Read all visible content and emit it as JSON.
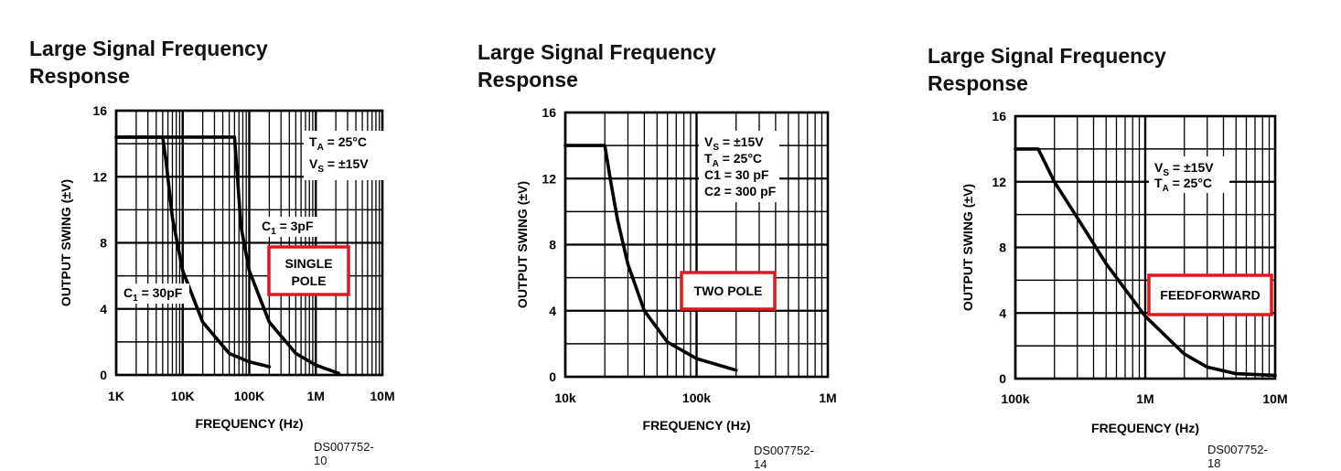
{
  "chart_data": [
    {
      "type": "line",
      "title": "Large Signal Frequency Response",
      "xlabel": "FREQUENCY (Hz)",
      "ylabel": "OUTPUT SWING (±V)",
      "xscale": "log",
      "xlim": [
        1000,
        10000000
      ],
      "ylim": [
        0,
        16
      ],
      "grid": true,
      "xtick_labels": [
        "1K",
        "10K",
        "100K",
        "1M",
        "10M"
      ],
      "ytick_labels": [
        "0",
        "4",
        "8",
        "12",
        "16"
      ],
      "conditions": [
        "T_A = 25°C",
        "V_S = ±15V"
      ],
      "boxed_label": "SINGLE POLE",
      "figure_code": "DS007752-10",
      "series": [
        {
          "name": "C1 = 30pF",
          "x": [
            1000,
            5000,
            5600,
            7000,
            10000,
            20000,
            50000,
            100000,
            200000
          ],
          "y": [
            14.4,
            14.4,
            13.0,
            9.5,
            6.3,
            3.2,
            1.3,
            0.8,
            0.5
          ]
        },
        {
          "name": "C1 = 3pF",
          "x": [
            1000,
            60000,
            65000,
            75000,
            100000,
            200000,
            500000,
            1000000,
            2200000
          ],
          "y": [
            14.4,
            14.4,
            12.5,
            9.0,
            6.3,
            3.2,
            1.3,
            0.6,
            0.1
          ]
        }
      ]
    },
    {
      "type": "line",
      "title": "Large Signal Frequency Response",
      "xlabel": "FREQUENCY (Hz)",
      "ylabel": "OUTPUT SWING (±V)",
      "xscale": "log",
      "xlim": [
        10000,
        1000000
      ],
      "ylim": [
        0,
        16
      ],
      "grid": true,
      "xtick_labels": [
        "10k",
        "100k",
        "1M"
      ],
      "ytick_labels": [
        "0",
        "4",
        "8",
        "12",
        "16"
      ],
      "conditions": [
        "V_S = ±15V",
        "T_A = 25°C",
        "C1 = 30 pF",
        "C2 = 300 pF"
      ],
      "boxed_label": "TWO POLE",
      "figure_code": "DS007752-14",
      "series": [
        {
          "x": [
            10000,
            20000,
            22000,
            25000,
            30000,
            40000,
            60000,
            100000,
            200000
          ],
          "y": [
            14.0,
            14.0,
            12.0,
            9.5,
            6.8,
            4.0,
            2.1,
            1.1,
            0.4
          ]
        }
      ]
    },
    {
      "type": "line",
      "title": "Large Signal Frequency Response",
      "xlabel": "FREQUENCY (Hz)",
      "ylabel": "OUTPUT SWING (±V)",
      "xscale": "log",
      "xlim": [
        100000,
        10000000
      ],
      "ylim": [
        0,
        16
      ],
      "grid": true,
      "xtick_labels": [
        "100k",
        "1M",
        "10M"
      ],
      "ytick_labels": [
        "0",
        "4",
        "8",
        "12",
        "16"
      ],
      "conditions": [
        "V_S = ±15V",
        "T_A = 25°C"
      ],
      "boxed_label": "FEEDFORWARD",
      "figure_code": "DS007752-18",
      "series": [
        {
          "x": [
            100000,
            150000,
            200000,
            300000,
            500000,
            1000000,
            2000000,
            3000000,
            5000000,
            10000000
          ],
          "y": [
            14.0,
            14.0,
            12.0,
            9.8,
            7.0,
            3.8,
            1.5,
            0.7,
            0.3,
            0.2
          ]
        }
      ]
    }
  ]
}
